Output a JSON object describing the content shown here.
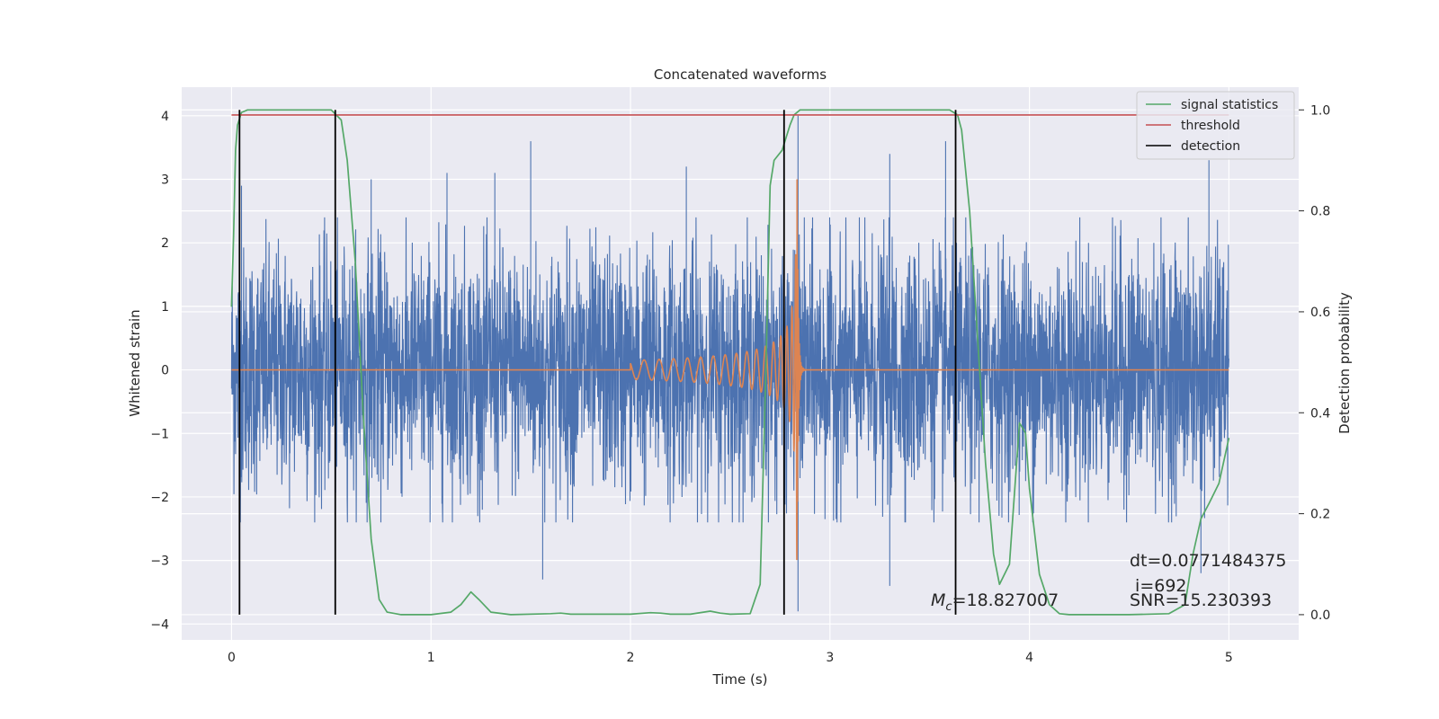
{
  "chart_data": {
    "type": "line",
    "title": "Concatenated waveforms",
    "xlabel": "Time (s)",
    "ylabel": "Whitened strain",
    "y2label": "Detection probability",
    "xlim": [
      -0.25,
      5.35
    ],
    "ylim": [
      -4.25,
      4.45
    ],
    "y2lim": [
      -0.05,
      1.045
    ],
    "xticks": [
      0,
      1,
      2,
      3,
      4,
      5
    ],
    "yticks": [
      -4,
      -3,
      -2,
      -1,
      0,
      1,
      2,
      3,
      4
    ],
    "y2ticks": [
      0.0,
      0.2,
      0.4,
      0.6,
      0.8,
      1.0
    ],
    "xtick_labels": [
      "0",
      "1",
      "2",
      "3",
      "4",
      "5"
    ],
    "ytick_labels": [
      "−4",
      "−3",
      "−2",
      "−1",
      "0",
      "1",
      "2",
      "3",
      "4"
    ],
    "y2tick_labels": [
      "0.0",
      "0.2",
      "0.4",
      "0.6",
      "0.8",
      "1.0"
    ],
    "grid": true,
    "legend_position": "top-right",
    "legend": [
      {
        "label": "signal statistics",
        "color": "#55a868"
      },
      {
        "label": "threshold",
        "color": "#c44e52"
      },
      {
        "label": "detection",
        "color": "#000000"
      }
    ],
    "colors": {
      "noise": "#4c72b0",
      "waveform": "#dd8452",
      "signal_statistics": "#55a868",
      "threshold": "#c44e52",
      "detection": "#000000",
      "plot_background": "#eaeaf2",
      "grid": "#ffffff"
    },
    "noise": {
      "x_range": [
        0,
        5
      ],
      "typical_range": [
        -2.4,
        2.4
      ],
      "peaks": [
        {
          "x": 0.05,
          "y": 2.9
        },
        {
          "x": 0.7,
          "y": 3.0
        },
        {
          "x": 1.08,
          "y": 3.1
        },
        {
          "x": 1.32,
          "y": 3.1
        },
        {
          "x": 1.5,
          "y": 3.6
        },
        {
          "x": 2.28,
          "y": 3.2
        },
        {
          "x": 2.84,
          "y": 4.0
        },
        {
          "x": 3.3,
          "y": 3.4
        },
        {
          "x": 3.3,
          "y": -3.4
        },
        {
          "x": 3.58,
          "y": 3.6
        },
        {
          "x": 4.9,
          "y": 3.3
        },
        {
          "x": 2.84,
          "y": -3.8
        },
        {
          "x": 1.56,
          "y": -3.3
        },
        {
          "x": 4.86,
          "y": -3.2
        }
      ]
    },
    "waveform": {
      "start": 2.0,
      "merger": 2.835,
      "end": 5.0,
      "start_amplitude": 0.15,
      "peak_amplitude": 3.0,
      "start_frequency_hz": 30
    },
    "signal_statistics": {
      "x": [
        0.0,
        0.01,
        0.02,
        0.03,
        0.05,
        0.08,
        0.12,
        0.5,
        0.55,
        0.58,
        0.62,
        0.66,
        0.7,
        0.74,
        0.78,
        0.85,
        1.0,
        1.1,
        1.15,
        1.2,
        1.24,
        1.3,
        1.4,
        1.6,
        1.65,
        1.7,
        1.9,
        2.0,
        2.1,
        2.15,
        2.2,
        2.3,
        2.4,
        2.45,
        2.5,
        2.6,
        2.65,
        2.68,
        2.7,
        2.72,
        2.76,
        2.8,
        2.82,
        2.85,
        3.6,
        3.64,
        3.66,
        3.7,
        3.74,
        3.78,
        3.82,
        3.85,
        3.9,
        3.95,
        3.98,
        4.0,
        4.05,
        4.1,
        4.15,
        4.2,
        4.5,
        4.7,
        4.78,
        4.82,
        4.86,
        4.9,
        4.95,
        5.0
      ],
      "y": [
        0.61,
        0.75,
        0.92,
        0.97,
        0.995,
        1.0,
        1.0,
        1.0,
        0.98,
        0.9,
        0.7,
        0.4,
        0.15,
        0.03,
        0.005,
        0.0,
        0.0,
        0.005,
        0.02,
        0.045,
        0.03,
        0.005,
        0.0,
        0.002,
        0.003,
        0.001,
        0.001,
        0.001,
        0.004,
        0.003,
        0.001,
        0.001,
        0.007,
        0.003,
        0.001,
        0.002,
        0.06,
        0.5,
        0.85,
        0.9,
        0.92,
        0.97,
        0.99,
        1.0,
        1.0,
        0.99,
        0.96,
        0.8,
        0.55,
        0.3,
        0.12,
        0.06,
        0.1,
        0.38,
        0.36,
        0.25,
        0.08,
        0.02,
        0.002,
        0.0,
        0.0,
        0.002,
        0.02,
        0.12,
        0.19,
        0.22,
        0.26,
        0.35
      ]
    },
    "threshold": {
      "x": [
        0,
        5
      ],
      "y": 0.99
    },
    "detections": [
      0.04,
      0.52,
      2.77,
      3.63
    ],
    "annotations": {
      "mc": "=18.827007",
      "dt": "dt=0.0771484375",
      "i": " i=692",
      "snr": "SNR=15.230393"
    }
  }
}
